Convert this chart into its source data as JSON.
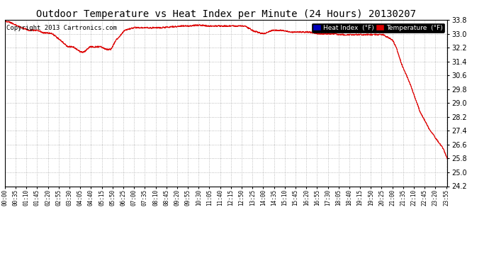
{
  "title": "Outdoor Temperature vs Heat Index per Minute (24 Hours) 20130207",
  "copyright": "Copyright 2013 Cartronics.com",
  "ylabel_right_ticks": [
    24.2,
    25.0,
    25.8,
    26.6,
    27.4,
    28.2,
    29.0,
    29.8,
    30.6,
    31.4,
    32.2,
    33.0,
    33.8
  ],
  "ylim": [
    24.2,
    33.8
  ],
  "line_color": "#dd0000",
  "heat_index_legend_bg": "#0000bb",
  "temp_legend_bg": "#dd0000",
  "legend_text_color": "#ffffff",
  "background_color": "#ffffff",
  "plot_bg_color": "#ffffff",
  "grid_color": "#aaaaaa",
  "title_fontsize": 10,
  "copyright_fontsize": 6.5,
  "x_tick_step": 35,
  "n_minutes": 1440
}
